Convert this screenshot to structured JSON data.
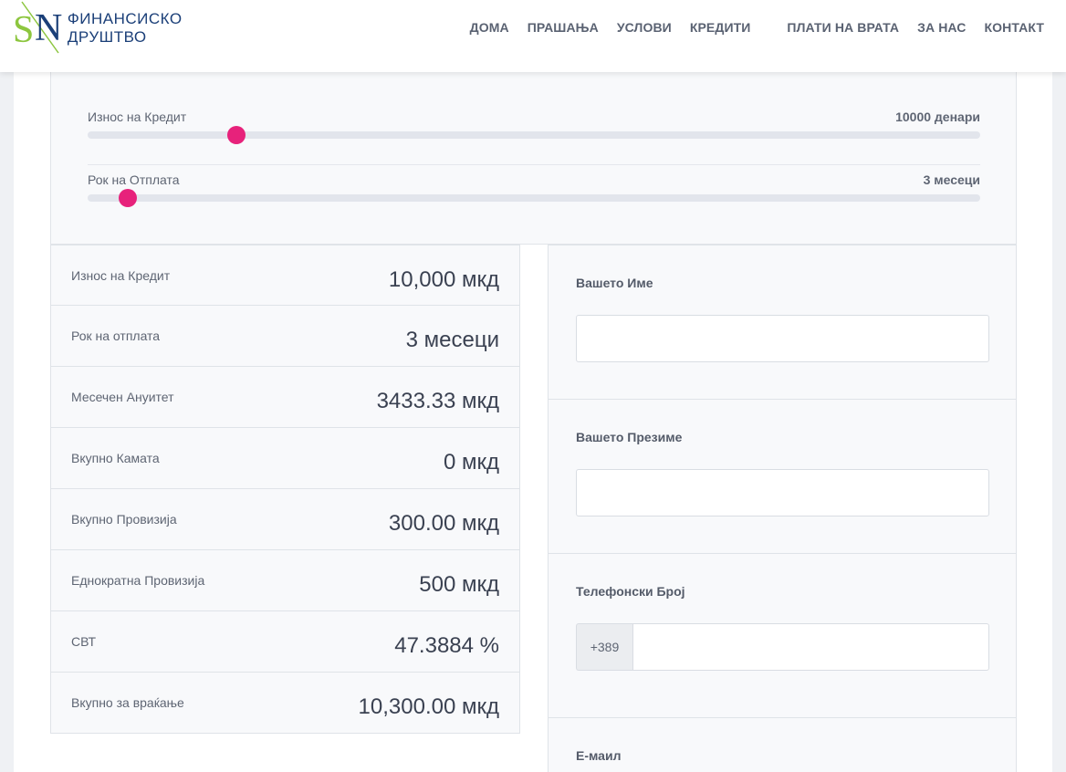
{
  "brand": {
    "name": "ФИНАНСИСКО ДРУШТВО",
    "logo_text": "SN",
    "colors": {
      "green": "#8dc63f",
      "blue": "#1b3f78"
    }
  },
  "nav": {
    "items": [
      "ДОМА",
      "ПРАШАЊА",
      "УСЛОВИ",
      "КРЕДИТИ",
      "ПЛАТИ НА ВРАТА",
      "ЗА НАС",
      "КОНТАКТ"
    ]
  },
  "sliders": {
    "amount": {
      "label": "Износ на Кредит",
      "value_text": "10000 денари",
      "level": 0.167
    },
    "term": {
      "label": "Рок на Отплата",
      "value_text": "3 месеци",
      "level": 0.045
    },
    "thumb_color": "#e7227b"
  },
  "results": [
    {
      "label": "Износ на Кредит",
      "value": "10,000 мкд"
    },
    {
      "label": "Рок на отплата",
      "value": "3 месеци"
    },
    {
      "label": "Месечен Ануитет",
      "value": "3433.33 мкд"
    },
    {
      "label": "Вкупно Камата",
      "value": "0 мкд"
    },
    {
      "label": "Вкупно Провизија",
      "value": "300.00 мкд"
    },
    {
      "label": "Еднократна Провизија",
      "value": "500 мкд"
    },
    {
      "label": "СВТ",
      "value": "47.3884 %"
    },
    {
      "label": "Вкупно за враќање",
      "value": "10,300.00 мкд"
    }
  ],
  "form": {
    "first_name": {
      "label": "Вашето Име",
      "value": ""
    },
    "last_name": {
      "label": "Вашето Презиме",
      "value": ""
    },
    "phone": {
      "label": "Телефонски Број",
      "prefix": "+389",
      "value": ""
    },
    "email": {
      "label": "Е-маил"
    }
  }
}
